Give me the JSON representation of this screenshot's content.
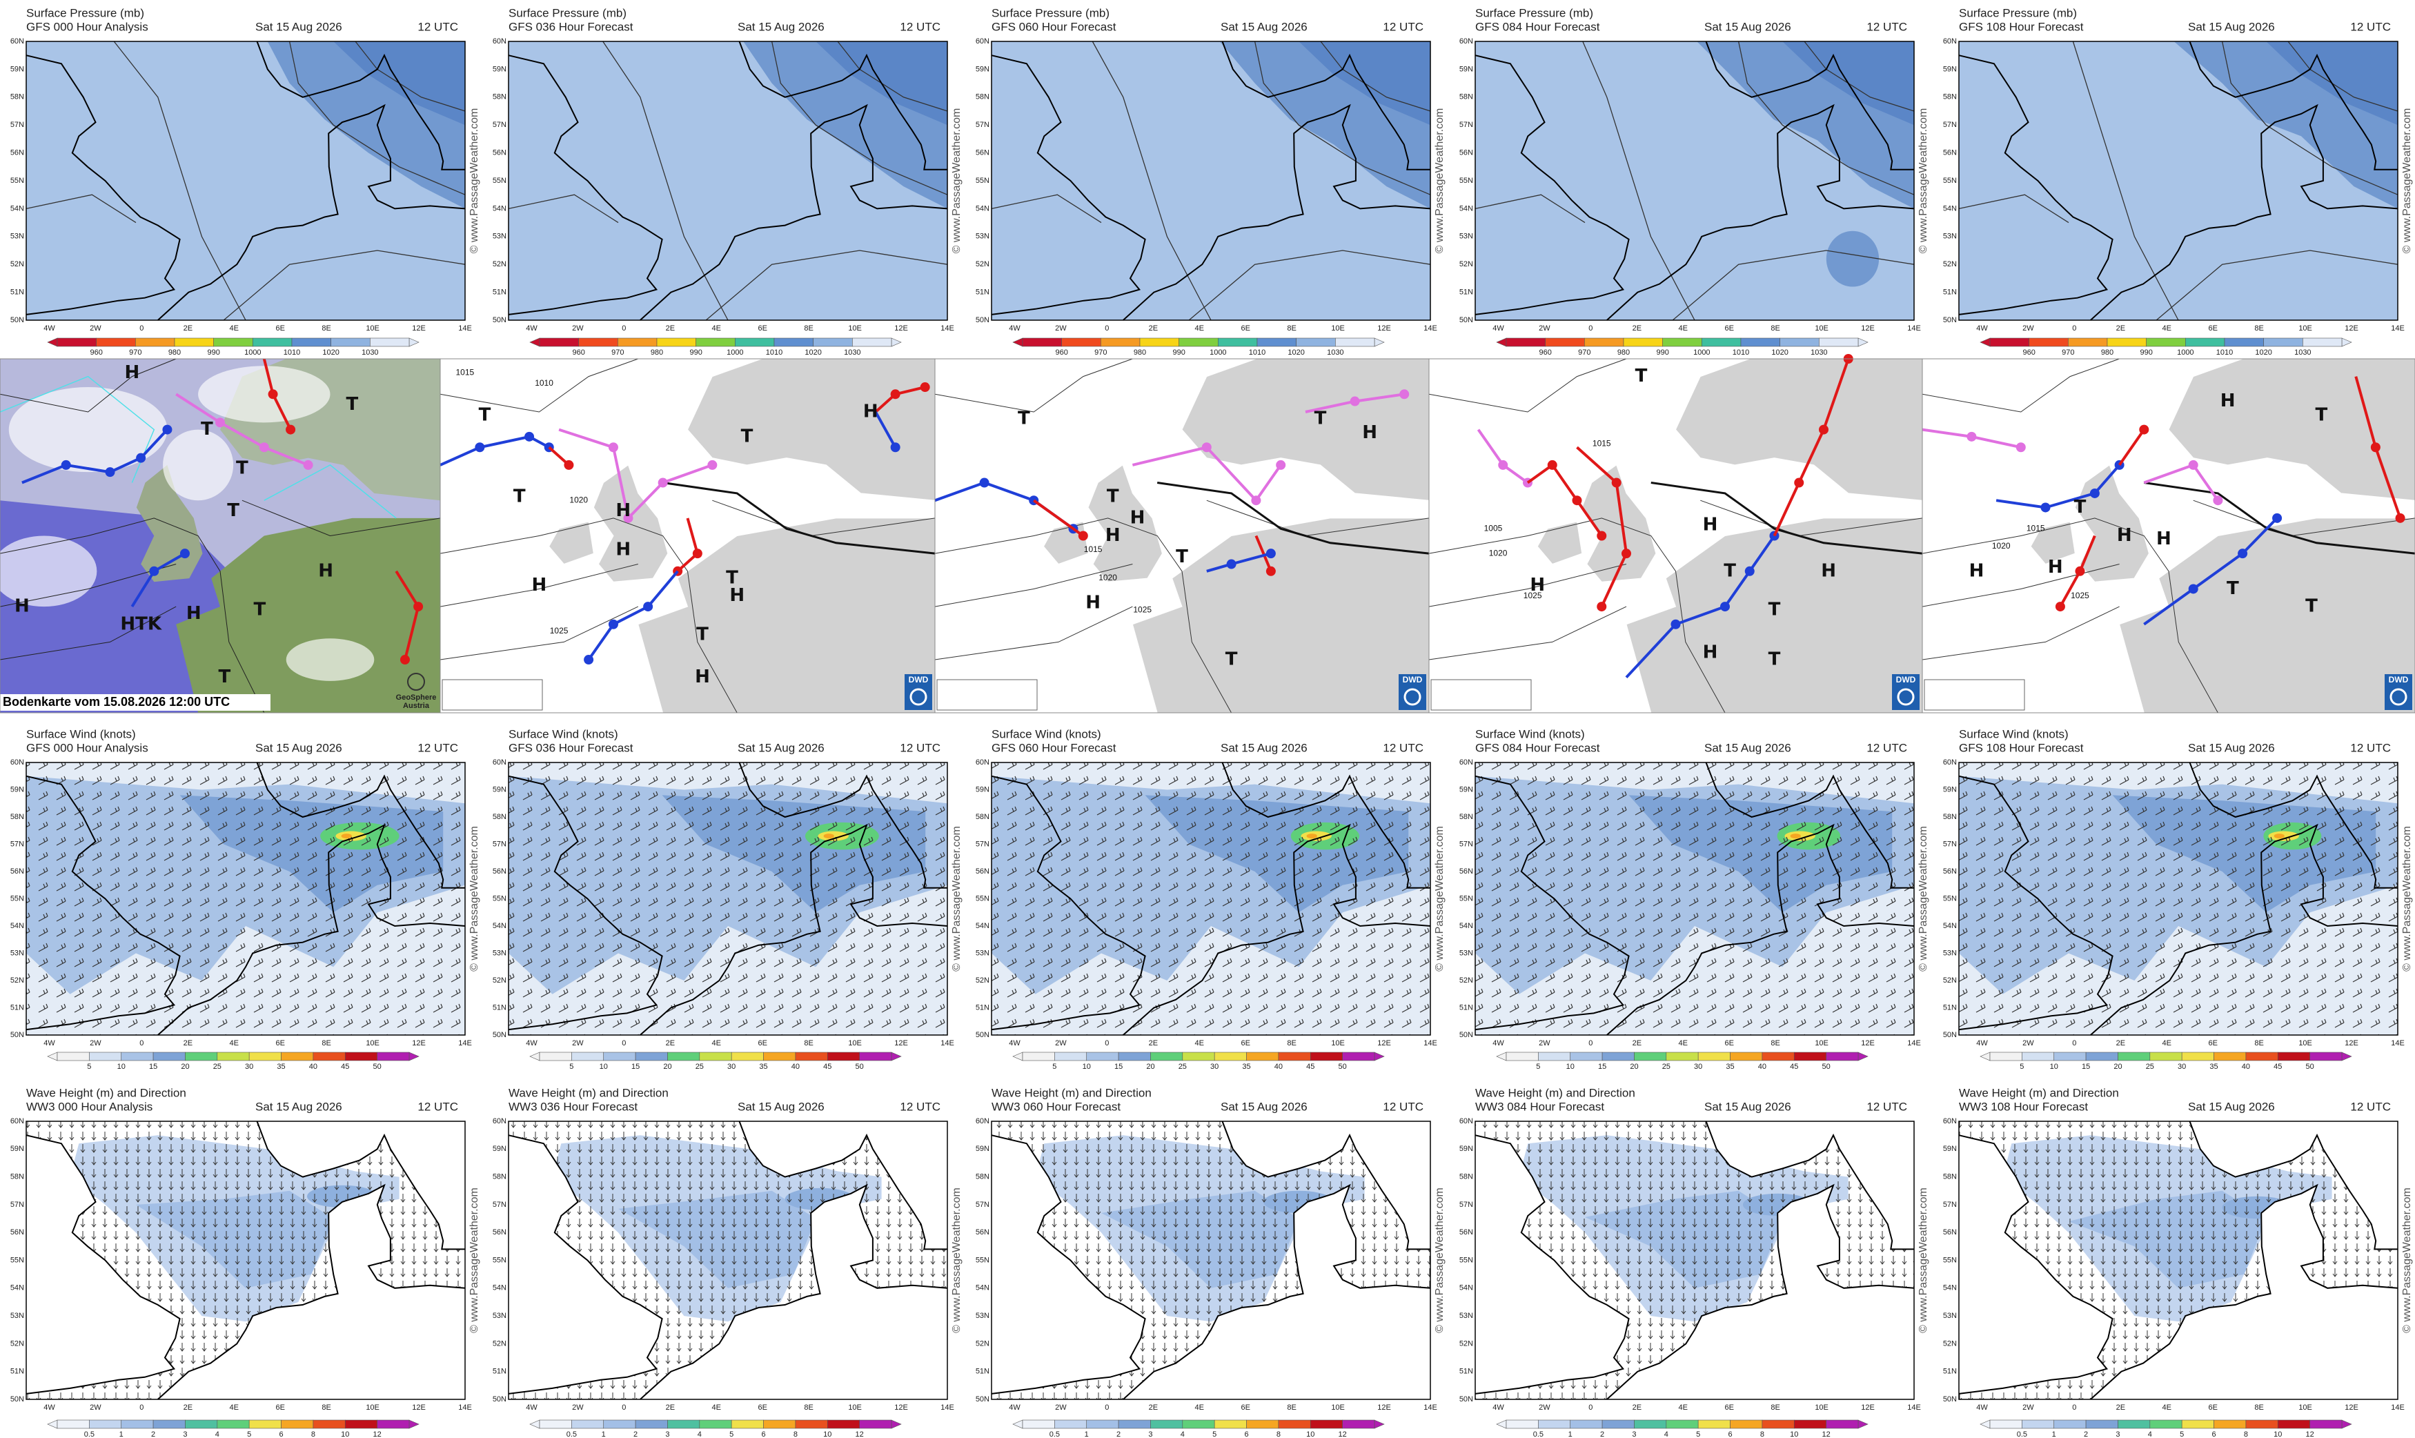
{
  "date": "Sat 15 Aug 2026",
  "time": "12 UTC",
  "watermark": "© www.PassageWeather.com",
  "lat_labels": [
    "60N",
    "59N",
    "58N",
    "57N",
    "56N",
    "55N",
    "54N",
    "53N",
    "52N",
    "51N",
    "50N"
  ],
  "lon_labels": [
    "4W",
    "2W",
    "0",
    "2E",
    "4E",
    "6E",
    "8E",
    "10E",
    "12E",
    "14E"
  ],
  "rows": [
    {
      "title": "Surface Pressure (mb)",
      "runs": [
        "GFS 000 Hour Analysis",
        "GFS 036 Hour Forecast",
        "GFS 060 Hour Forecast",
        "GFS 084 Hour Forecast",
        "GFS 108 Hour Forecast"
      ],
      "colorbar": {
        "labels": [
          960,
          970,
          980,
          990,
          1000,
          1010,
          1020,
          1030
        ],
        "colors": [
          "#c8102e",
          "#f04a1e",
          "#f59a23",
          "#f7d417",
          "#7fcf3f",
          "#3fbf9f",
          "#5f8fd0",
          "#8fb3e0",
          "#dfe8f6"
        ]
      }
    },
    {
      "title": "Surface Wind (knots)",
      "runs": [
        "GFS 000 Hour Analysis",
        "GFS 036 Hour Forecast",
        "GFS 060 Hour Forecast",
        "GFS 084 Hour Forecast",
        "GFS 108 Hour Forecast"
      ],
      "colorbar": {
        "labels": [
          5,
          10,
          15,
          20,
          25,
          30,
          35,
          40,
          45,
          50
        ],
        "colors": [
          "#f2f2f2",
          "#d4e1f2",
          "#a9c3e6",
          "#7ea3d6",
          "#5fcf7a",
          "#c8e04a",
          "#f0e04a",
          "#f5a623",
          "#e8501e",
          "#c0101a",
          "#b01fb0"
        ]
      }
    },
    {
      "title": "Wave Height (m) and Direction",
      "runs": [
        "WW3 000 Hour Analysis",
        "WW3 036 Hour Forecast",
        "WW3 060 Hour Forecast",
        "WW3 084 Hour Forecast",
        "WW3 108 Hour Forecast"
      ],
      "colorbar": {
        "labels": [
          0.5,
          1,
          2,
          3,
          4,
          5,
          6,
          8,
          10,
          12
        ],
        "colors": [
          "#eef2f9",
          "#c3d5ef",
          "#a3bfe6",
          "#7ea3d6",
          "#4fc0a0",
          "#5fcf7a",
          "#f0e04a",
          "#f5a623",
          "#e8501e",
          "#c0101a",
          "#b01fb0"
        ]
      }
    }
  ],
  "synoptic": {
    "caption": "Bodenkarte vom 15.08.2026 12:00 UTC",
    "geosphere": [
      "GeoSphere",
      "Austria"
    ],
    "dwd": "DWD",
    "panels": [
      {
        "labels": [
          "H",
          "T",
          "T",
          "T",
          "T",
          "H",
          "H",
          "HTK",
          "H",
          "T",
          "T"
        ]
      },
      {
        "labels": [
          "T",
          "T",
          "H",
          "H",
          "T",
          "H",
          "H",
          "T",
          "H",
          "T",
          "H",
          "1010",
          "1015",
          "1020",
          "1025"
        ]
      },
      {
        "labels": [
          "T",
          "H",
          "T",
          "T",
          "H",
          "H",
          "T",
          "H",
          "T",
          "1015",
          "1020",
          "1025"
        ]
      },
      {
        "labels": [
          "T",
          "H",
          "H",
          "H",
          "T",
          "T",
          "H",
          "T",
          "1005",
          "1015",
          "1020",
          "1025"
        ]
      },
      {
        "labels": [
          "H",
          "T",
          "H",
          "H",
          "H",
          "T",
          "T",
          "H",
          "T",
          "1015",
          "1020",
          "1025"
        ]
      }
    ]
  }
}
